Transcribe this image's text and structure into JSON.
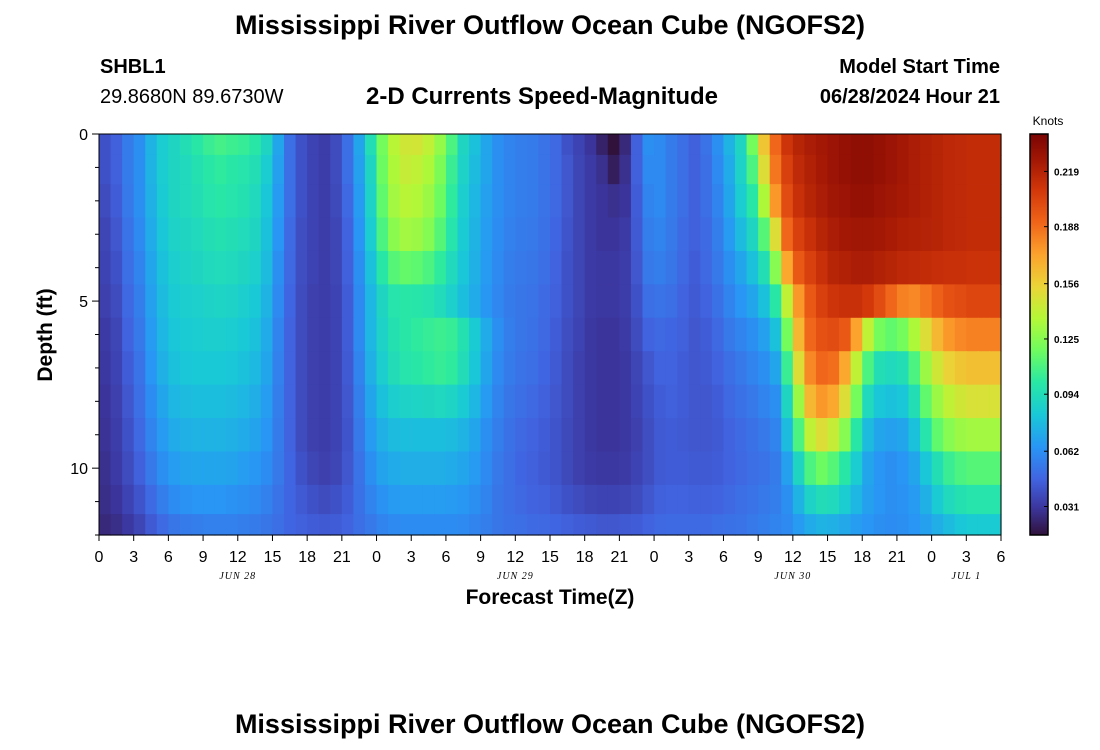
{
  "header": {
    "title": "Mississippi River Outflow Ocean Cube (NGOFS2)",
    "station_id": "SHBL1",
    "station_coords": "29.8680N  89.6730W",
    "subtitle": "2-D Currents Speed-Magnitude",
    "model_start_label": "Model Start Time",
    "model_start_value": "06/28/2024 Hour 21"
  },
  "footer": {
    "title": "Mississippi River Outflow Ocean Cube (NGOFS2)"
  },
  "chart_data": {
    "type": "heatmap",
    "title": "2-D Currents Speed-Magnitude",
    "xlabel": "Forecast Time(Z)",
    "ylabel": "Depth (ft)",
    "x_range_hours": [
      0,
      78
    ],
    "y_range": [
      0,
      12
    ],
    "y_inverted": true,
    "x_tick_labels": [
      "0",
      "3",
      "6",
      "9",
      "12",
      "15",
      "18",
      "21",
      "0",
      "3",
      "6",
      "9",
      "12",
      "15",
      "18",
      "21",
      "0",
      "3",
      "6",
      "9",
      "12",
      "15",
      "18",
      "21",
      "0",
      "3",
      "6"
    ],
    "y_tick_labels": [
      "0",
      "5",
      "10"
    ],
    "y_tick_values": [
      0,
      5,
      10
    ],
    "date_labels": [
      {
        "label": "JUN 28",
        "hour": 12
      },
      {
        "label": "JUN 29",
        "hour": 36
      },
      {
        "label": "JUN 30",
        "hour": 60
      },
      {
        "label": "JUL 1",
        "hour": 75
      }
    ],
    "colorbar": {
      "unit_label": "Knots",
      "ticks": [
        "0.031",
        "0.062",
        "0.094",
        "0.125",
        "0.156",
        "0.188",
        "0.219"
      ],
      "tick_values": [
        0.031,
        0.062,
        0.094,
        0.125,
        0.156,
        0.188,
        0.219
      ],
      "range": [
        0.015,
        0.24
      ]
    },
    "time_hours": [
      0,
      1,
      2,
      3,
      4,
      5,
      6,
      7,
      8,
      9,
      10,
      11,
      12,
      13,
      14,
      15,
      16,
      17,
      18,
      19,
      20,
      21,
      22,
      23,
      24,
      25,
      26,
      27,
      28,
      29,
      30,
      31,
      32,
      33,
      34,
      35,
      36,
      37,
      38,
      39,
      40,
      41,
      42,
      43,
      44,
      45,
      46,
      47,
      48,
      49,
      50,
      51,
      52,
      53,
      54,
      55,
      56,
      57,
      58,
      59,
      60,
      61,
      62,
      63,
      64,
      65,
      66,
      67,
      68,
      69,
      70,
      71,
      72,
      73,
      74,
      75,
      76,
      77
    ],
    "depth_rows": [
      0.25,
      1,
      2,
      3,
      4,
      5,
      6,
      7,
      8,
      9,
      10,
      11,
      11.75
    ],
    "speed_matrix": [
      [
        0.04,
        0.045,
        0.055,
        0.062,
        0.075,
        0.085,
        0.09,
        0.095,
        0.1,
        0.105,
        0.108,
        0.106,
        0.104,
        0.1,
        0.09,
        0.07,
        0.05,
        0.04,
        0.035,
        0.033,
        0.038,
        0.05,
        0.07,
        0.095,
        0.12,
        0.138,
        0.145,
        0.146,
        0.14,
        0.128,
        0.11,
        0.09,
        0.08,
        0.07,
        0.062,
        0.058,
        0.056,
        0.055,
        0.052,
        0.048,
        0.04,
        0.035,
        0.03,
        0.022,
        0.01,
        0.025,
        0.045,
        0.062,
        0.06,
        0.055,
        0.05,
        0.045,
        0.052,
        0.062,
        0.075,
        0.09,
        0.12,
        0.16,
        0.19,
        0.21,
        0.218,
        0.222,
        0.225,
        0.228,
        0.23,
        0.232,
        0.232,
        0.23,
        0.228,
        0.225,
        0.222,
        0.22,
        0.218,
        0.216,
        0.215,
        0.214,
        0.214,
        0.214
      ],
      [
        0.04,
        0.045,
        0.055,
        0.062,
        0.075,
        0.085,
        0.09,
        0.092,
        0.096,
        0.1,
        0.102,
        0.1,
        0.098,
        0.095,
        0.085,
        0.068,
        0.05,
        0.04,
        0.035,
        0.033,
        0.038,
        0.05,
        0.068,
        0.09,
        0.118,
        0.135,
        0.142,
        0.14,
        0.135,
        0.122,
        0.105,
        0.088,
        0.078,
        0.07,
        0.062,
        0.058,
        0.056,
        0.055,
        0.052,
        0.048,
        0.042,
        0.036,
        0.032,
        0.028,
        0.02,
        0.028,
        0.045,
        0.06,
        0.06,
        0.055,
        0.05,
        0.045,
        0.05,
        0.06,
        0.072,
        0.088,
        0.11,
        0.15,
        0.185,
        0.205,
        0.215,
        0.22,
        0.224,
        0.228,
        0.23,
        0.232,
        0.232,
        0.23,
        0.228,
        0.225,
        0.222,
        0.22,
        0.218,
        0.216,
        0.215,
        0.214,
        0.214,
        0.214
      ],
      [
        0.038,
        0.044,
        0.054,
        0.062,
        0.074,
        0.084,
        0.09,
        0.092,
        0.095,
        0.098,
        0.1,
        0.098,
        0.096,
        0.092,
        0.082,
        0.066,
        0.05,
        0.04,
        0.035,
        0.033,
        0.037,
        0.048,
        0.066,
        0.088,
        0.115,
        0.132,
        0.138,
        0.136,
        0.13,
        0.118,
        0.102,
        0.086,
        0.076,
        0.068,
        0.062,
        0.058,
        0.056,
        0.055,
        0.052,
        0.048,
        0.042,
        0.036,
        0.032,
        0.03,
        0.028,
        0.03,
        0.044,
        0.058,
        0.06,
        0.055,
        0.05,
        0.045,
        0.05,
        0.058,
        0.07,
        0.085,
        0.1,
        0.135,
        0.175,
        0.2,
        0.212,
        0.218,
        0.222,
        0.226,
        0.228,
        0.23,
        0.23,
        0.228,
        0.226,
        0.224,
        0.222,
        0.22,
        0.218,
        0.216,
        0.215,
        0.214,
        0.214,
        0.214
      ],
      [
        0.036,
        0.042,
        0.052,
        0.06,
        0.072,
        0.082,
        0.088,
        0.09,
        0.092,
        0.095,
        0.096,
        0.095,
        0.093,
        0.09,
        0.08,
        0.064,
        0.049,
        0.039,
        0.035,
        0.033,
        0.036,
        0.046,
        0.064,
        0.085,
        0.11,
        0.126,
        0.132,
        0.13,
        0.124,
        0.112,
        0.098,
        0.084,
        0.075,
        0.067,
        0.061,
        0.057,
        0.055,
        0.054,
        0.051,
        0.047,
        0.041,
        0.036,
        0.032,
        0.03,
        0.03,
        0.032,
        0.043,
        0.056,
        0.058,
        0.054,
        0.049,
        0.045,
        0.049,
        0.056,
        0.066,
        0.078,
        0.09,
        0.112,
        0.15,
        0.19,
        0.205,
        0.212,
        0.218,
        0.222,
        0.225,
        0.226,
        0.226,
        0.225,
        0.223,
        0.221,
        0.22,
        0.219,
        0.218,
        0.216,
        0.215,
        0.214,
        0.214,
        0.214
      ],
      [
        0.035,
        0.04,
        0.05,
        0.058,
        0.07,
        0.08,
        0.086,
        0.088,
        0.09,
        0.092,
        0.093,
        0.092,
        0.09,
        0.087,
        0.078,
        0.062,
        0.048,
        0.039,
        0.035,
        0.033,
        0.036,
        0.045,
        0.062,
        0.08,
        0.1,
        0.112,
        0.116,
        0.114,
        0.11,
        0.102,
        0.092,
        0.082,
        0.074,
        0.066,
        0.06,
        0.056,
        0.054,
        0.053,
        0.05,
        0.046,
        0.04,
        0.036,
        0.032,
        0.031,
        0.031,
        0.033,
        0.042,
        0.054,
        0.056,
        0.053,
        0.048,
        0.044,
        0.048,
        0.054,
        0.062,
        0.07,
        0.08,
        0.095,
        0.125,
        0.17,
        0.195,
        0.205,
        0.212,
        0.218,
        0.22,
        0.222,
        0.222,
        0.22,
        0.218,
        0.216,
        0.215,
        0.214,
        0.213,
        0.212,
        0.212,
        0.211,
        0.211,
        0.211
      ],
      [
        0.034,
        0.038,
        0.048,
        0.056,
        0.068,
        0.078,
        0.084,
        0.086,
        0.087,
        0.088,
        0.089,
        0.088,
        0.086,
        0.083,
        0.075,
        0.06,
        0.047,
        0.038,
        0.034,
        0.033,
        0.035,
        0.044,
        0.06,
        0.076,
        0.09,
        0.098,
        0.1,
        0.099,
        0.097,
        0.093,
        0.087,
        0.079,
        0.072,
        0.065,
        0.059,
        0.055,
        0.053,
        0.052,
        0.049,
        0.045,
        0.04,
        0.036,
        0.032,
        0.031,
        0.031,
        0.033,
        0.04,
        0.05,
        0.052,
        0.05,
        0.046,
        0.043,
        0.046,
        0.051,
        0.058,
        0.064,
        0.07,
        0.08,
        0.1,
        0.14,
        0.175,
        0.195,
        0.205,
        0.21,
        0.212,
        0.212,
        0.208,
        0.2,
        0.19,
        0.182,
        0.18,
        0.185,
        0.192,
        0.198,
        0.2,
        0.202,
        0.202,
        0.202
      ],
      [
        0.032,
        0.036,
        0.046,
        0.054,
        0.066,
        0.076,
        0.082,
        0.084,
        0.085,
        0.086,
        0.086,
        0.085,
        0.083,
        0.08,
        0.072,
        0.058,
        0.046,
        0.038,
        0.034,
        0.033,
        0.035,
        0.044,
        0.06,
        0.076,
        0.088,
        0.096,
        0.1,
        0.102,
        0.104,
        0.106,
        0.104,
        0.096,
        0.084,
        0.072,
        0.062,
        0.056,
        0.053,
        0.051,
        0.048,
        0.044,
        0.039,
        0.035,
        0.031,
        0.03,
        0.03,
        0.032,
        0.038,
        0.046,
        0.048,
        0.047,
        0.045,
        0.042,
        0.044,
        0.048,
        0.054,
        0.058,
        0.062,
        0.068,
        0.08,
        0.12,
        0.165,
        0.19,
        0.198,
        0.2,
        0.195,
        0.172,
        0.14,
        0.12,
        0.115,
        0.12,
        0.135,
        0.15,
        0.165,
        0.175,
        0.18,
        0.182,
        0.182,
        0.182
      ],
      [
        0.031,
        0.035,
        0.044,
        0.052,
        0.064,
        0.074,
        0.08,
        0.082,
        0.083,
        0.083,
        0.083,
        0.082,
        0.08,
        0.077,
        0.07,
        0.057,
        0.046,
        0.038,
        0.034,
        0.033,
        0.035,
        0.043,
        0.058,
        0.074,
        0.086,
        0.094,
        0.098,
        0.1,
        0.102,
        0.104,
        0.102,
        0.094,
        0.082,
        0.07,
        0.06,
        0.055,
        0.052,
        0.05,
        0.047,
        0.043,
        0.038,
        0.034,
        0.031,
        0.03,
        0.03,
        0.031,
        0.036,
        0.042,
        0.046,
        0.046,
        0.044,
        0.042,
        0.043,
        0.046,
        0.05,
        0.054,
        0.058,
        0.062,
        0.07,
        0.105,
        0.15,
        0.18,
        0.19,
        0.188,
        0.17,
        0.14,
        0.11,
        0.095,
        0.092,
        0.095,
        0.11,
        0.13,
        0.145,
        0.155,
        0.16,
        0.162,
        0.162,
        0.162
      ],
      [
        0.03,
        0.034,
        0.042,
        0.05,
        0.061,
        0.07,
        0.076,
        0.078,
        0.079,
        0.079,
        0.079,
        0.078,
        0.076,
        0.073,
        0.067,
        0.056,
        0.046,
        0.038,
        0.034,
        0.033,
        0.035,
        0.042,
        0.056,
        0.07,
        0.08,
        0.086,
        0.088,
        0.089,
        0.09,
        0.091,
        0.089,
        0.084,
        0.076,
        0.066,
        0.058,
        0.053,
        0.05,
        0.048,
        0.045,
        0.042,
        0.038,
        0.034,
        0.031,
        0.03,
        0.03,
        0.031,
        0.035,
        0.04,
        0.044,
        0.045,
        0.044,
        0.042,
        0.042,
        0.044,
        0.048,
        0.051,
        0.054,
        0.058,
        0.062,
        0.09,
        0.13,
        0.165,
        0.175,
        0.17,
        0.15,
        0.12,
        0.092,
        0.082,
        0.08,
        0.082,
        0.095,
        0.115,
        0.13,
        0.14,
        0.145,
        0.148,
        0.148,
        0.148
      ],
      [
        0.029,
        0.033,
        0.04,
        0.048,
        0.058,
        0.066,
        0.072,
        0.074,
        0.075,
        0.075,
        0.075,
        0.074,
        0.072,
        0.069,
        0.064,
        0.055,
        0.046,
        0.038,
        0.034,
        0.033,
        0.035,
        0.041,
        0.054,
        0.066,
        0.074,
        0.078,
        0.079,
        0.079,
        0.079,
        0.079,
        0.078,
        0.075,
        0.07,
        0.062,
        0.056,
        0.051,
        0.048,
        0.046,
        0.044,
        0.041,
        0.037,
        0.034,
        0.031,
        0.03,
        0.03,
        0.031,
        0.034,
        0.039,
        0.043,
        0.044,
        0.043,
        0.042,
        0.042,
        0.043,
        0.046,
        0.049,
        0.051,
        0.054,
        0.058,
        0.078,
        0.11,
        0.14,
        0.15,
        0.142,
        0.125,
        0.1,
        0.078,
        0.07,
        0.068,
        0.07,
        0.08,
        0.098,
        0.115,
        0.125,
        0.13,
        0.132,
        0.132,
        0.132
      ],
      [
        0.028,
        0.032,
        0.038,
        0.045,
        0.054,
        0.062,
        0.067,
        0.069,
        0.07,
        0.07,
        0.07,
        0.069,
        0.067,
        0.065,
        0.061,
        0.054,
        0.047,
        0.04,
        0.036,
        0.034,
        0.036,
        0.042,
        0.052,
        0.062,
        0.069,
        0.072,
        0.073,
        0.073,
        0.073,
        0.073,
        0.072,
        0.07,
        0.066,
        0.06,
        0.054,
        0.05,
        0.047,
        0.045,
        0.043,
        0.041,
        0.037,
        0.034,
        0.032,
        0.031,
        0.031,
        0.032,
        0.035,
        0.039,
        0.043,
        0.044,
        0.044,
        0.043,
        0.043,
        0.044,
        0.046,
        0.048,
        0.05,
        0.052,
        0.055,
        0.068,
        0.09,
        0.11,
        0.118,
        0.112,
        0.1,
        0.085,
        0.07,
        0.064,
        0.062,
        0.064,
        0.07,
        0.082,
        0.095,
        0.105,
        0.11,
        0.112,
        0.112,
        0.112
      ],
      [
        0.027,
        0.03,
        0.035,
        0.041,
        0.049,
        0.056,
        0.061,
        0.063,
        0.064,
        0.064,
        0.064,
        0.063,
        0.062,
        0.06,
        0.057,
        0.052,
        0.047,
        0.043,
        0.04,
        0.038,
        0.04,
        0.044,
        0.051,
        0.058,
        0.063,
        0.066,
        0.067,
        0.067,
        0.067,
        0.067,
        0.066,
        0.065,
        0.062,
        0.058,
        0.053,
        0.05,
        0.048,
        0.046,
        0.045,
        0.043,
        0.04,
        0.038,
        0.036,
        0.035,
        0.035,
        0.036,
        0.038,
        0.042,
        0.045,
        0.046,
        0.046,
        0.045,
        0.045,
        0.046,
        0.048,
        0.05,
        0.052,
        0.054,
        0.056,
        0.062,
        0.075,
        0.088,
        0.094,
        0.092,
        0.085,
        0.076,
        0.068,
        0.064,
        0.062,
        0.063,
        0.066,
        0.074,
        0.084,
        0.092,
        0.096,
        0.098,
        0.098,
        0.098
      ],
      [
        0.025,
        0.027,
        0.031,
        0.036,
        0.043,
        0.049,
        0.053,
        0.055,
        0.056,
        0.057,
        0.057,
        0.057,
        0.056,
        0.055,
        0.053,
        0.05,
        0.047,
        0.045,
        0.044,
        0.043,
        0.044,
        0.046,
        0.05,
        0.054,
        0.058,
        0.06,
        0.061,
        0.061,
        0.061,
        0.061,
        0.061,
        0.06,
        0.058,
        0.056,
        0.053,
        0.051,
        0.05,
        0.049,
        0.048,
        0.047,
        0.045,
        0.044,
        0.043,
        0.042,
        0.042,
        0.043,
        0.044,
        0.046,
        0.048,
        0.049,
        0.049,
        0.049,
        0.049,
        0.05,
        0.051,
        0.052,
        0.054,
        0.056,
        0.058,
        0.06,
        0.066,
        0.072,
        0.075,
        0.074,
        0.071,
        0.067,
        0.064,
        0.062,
        0.061,
        0.062,
        0.064,
        0.068,
        0.073,
        0.078,
        0.082,
        0.084,
        0.084,
        0.084
      ]
    ]
  }
}
